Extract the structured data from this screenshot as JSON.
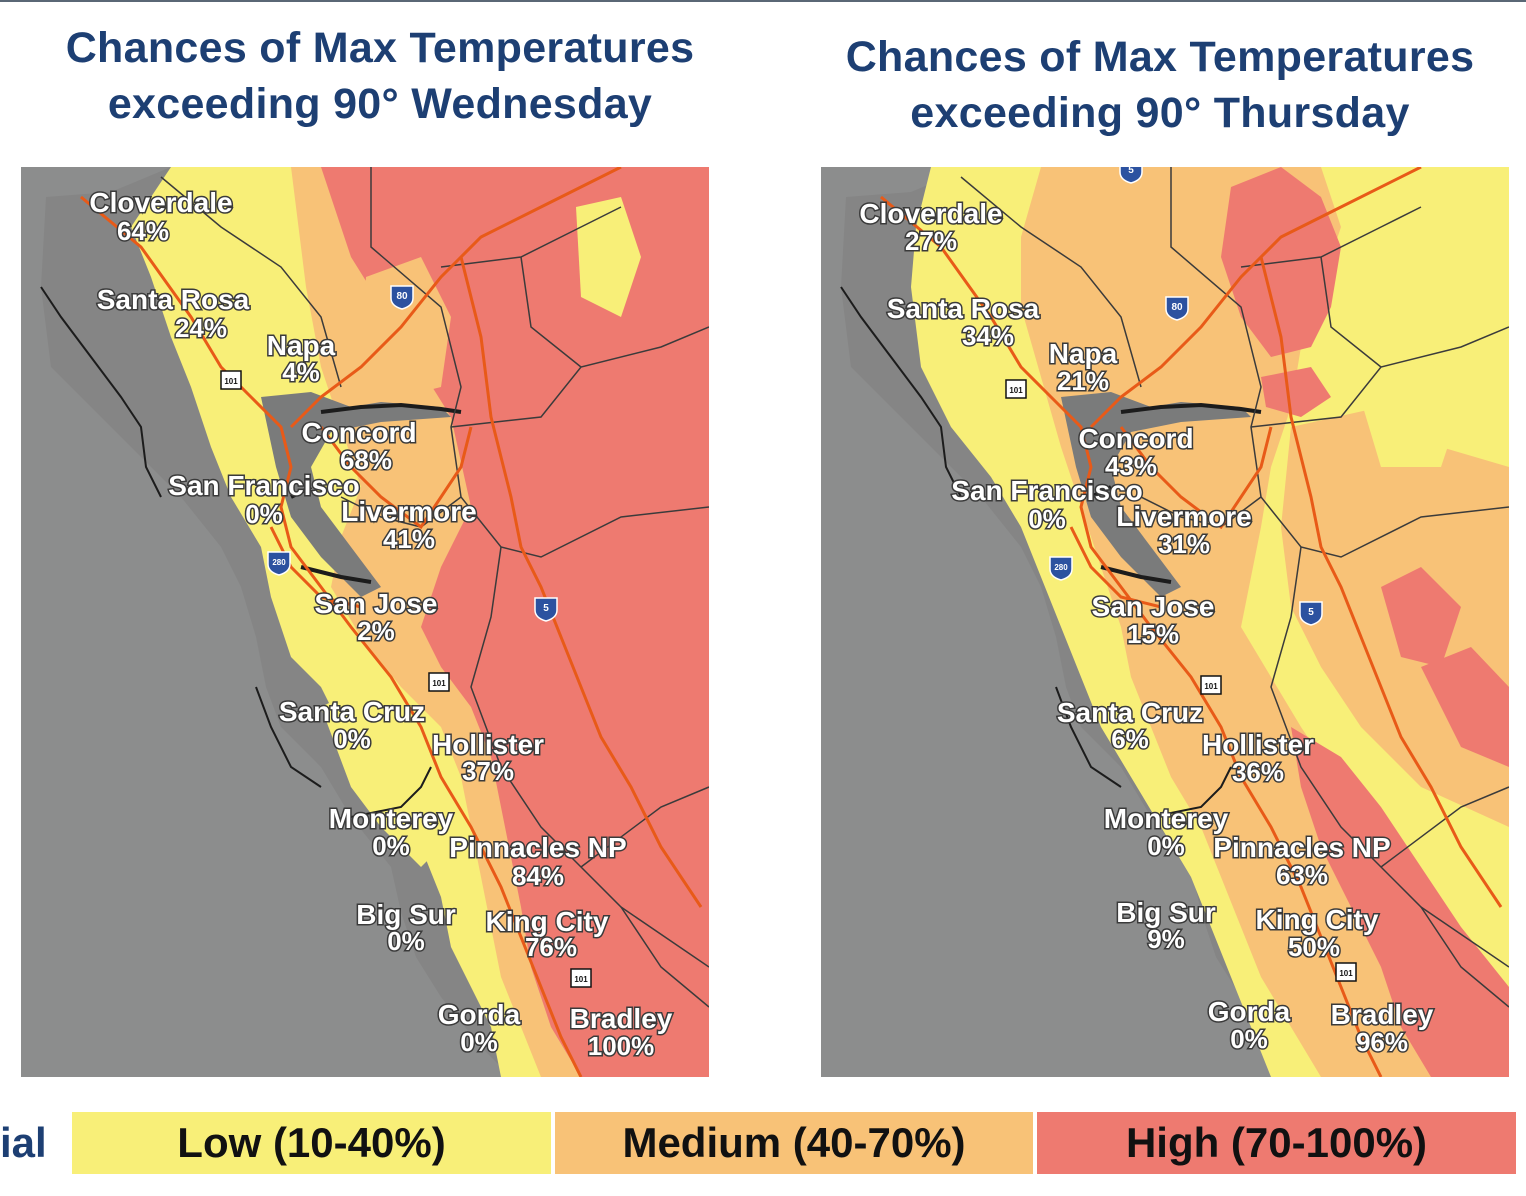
{
  "colors": {
    "background": "#8c8d8d",
    "low": "#f8ef78",
    "medium": "#f8c277",
    "high": "#ee7a70",
    "road": "#e85a18",
    "county_line": "#3b3b3b",
    "label_text": "#ffffff",
    "title_text": "#1d3f73"
  },
  "panels": [
    {
      "title_line1": "Chances of Max Temperatures",
      "title_line2": "exceeding 90° Wednesday",
      "cities": [
        {
          "name": "Cloverdale",
          "value": "64%"
        },
        {
          "name": "Santa Rosa",
          "value": "24%"
        },
        {
          "name": "Napa",
          "value": "4%"
        },
        {
          "name": "Concord",
          "value": "68%"
        },
        {
          "name": "San Francisco",
          "value": "0%"
        },
        {
          "name": "Livermore",
          "value": "41%"
        },
        {
          "name": "San Jose",
          "value": "2%"
        },
        {
          "name": "Santa Cruz",
          "value": "0%"
        },
        {
          "name": "Hollister",
          "value": "37%"
        },
        {
          "name": "Monterey",
          "value": "0%"
        },
        {
          "name": "Pinnacles NP",
          "value": "84%"
        },
        {
          "name": "Big Sur",
          "value": "0%"
        },
        {
          "name": "King City",
          "value": "76%"
        },
        {
          "name": "Gorda",
          "value": "0%"
        },
        {
          "name": "Bradley",
          "value": "100%"
        }
      ]
    },
    {
      "title_line1": "Chances of Max Temperatures",
      "title_line2": "exceeding 90° Thursday",
      "cities": [
        {
          "name": "Cloverdale",
          "value": "27%"
        },
        {
          "name": "Santa Rosa",
          "value": "34%"
        },
        {
          "name": "Napa",
          "value": "21%"
        },
        {
          "name": "Concord",
          "value": "43%"
        },
        {
          "name": "San Francisco",
          "value": "0%"
        },
        {
          "name": "Livermore",
          "value": "31%"
        },
        {
          "name": "San Jose",
          "value": "15%"
        },
        {
          "name": "Santa Cruz",
          "value": "6%"
        },
        {
          "name": "Hollister",
          "value": "36%"
        },
        {
          "name": "Monterey",
          "value": "0%"
        },
        {
          "name": "Pinnacles NP",
          "value": "63%"
        },
        {
          "name": "Big Sur",
          "value": "9%"
        },
        {
          "name": "King City",
          "value": "50%"
        },
        {
          "name": "Gorda",
          "value": "0%"
        },
        {
          "name": "Bradley",
          "value": "96%"
        }
      ]
    }
  ],
  "shields": {
    "i80": "80",
    "i5": "5",
    "i280": "280",
    "us101": "101"
  },
  "legend": {
    "partial_label": "ial",
    "low": "Low (10-40%)",
    "medium": "Medium (40-70%)",
    "high": "High (70-100%)"
  }
}
